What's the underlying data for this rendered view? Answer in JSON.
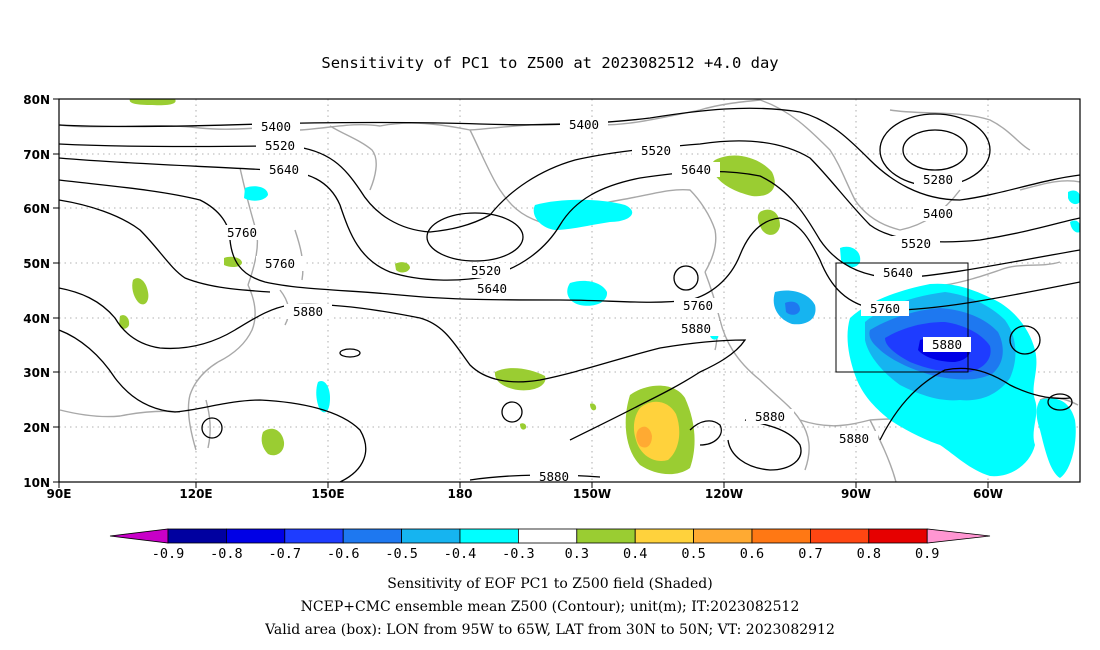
{
  "title": "Sensitivity of PC1 to Z500 at 2023082512 +4.0 day",
  "lat_labels": [
    "80N",
    "70N",
    "60N",
    "50N",
    "40N",
    "30N",
    "20N",
    "10N"
  ],
  "lon_labels": [
    "90E",
    "120E",
    "150E",
    "180",
    "150W",
    "120W",
    "90W",
    "60W"
  ],
  "contour_labels": {
    "c5400a": "5400",
    "c5520a": "5520",
    "c5640a": "5640",
    "c5760a": "5760",
    "c5760b": "5760",
    "c5880a": "5880",
    "c5400b": "5400",
    "c5520b": "5520",
    "c5640b": "5640",
    "c5520c": "5520",
    "c5640c": "5640",
    "c5760c": "5760",
    "c5880b": "5880",
    "c5280": "5280",
    "c5400c": "5400",
    "c5520d": "5520",
    "c5640d": "5640",
    "c5760d": "5760",
    "c5880c": "5880",
    "c5880d": "5880",
    "c5880e": "5880",
    "c5880f": "5880"
  },
  "colorbar": {
    "labels": [
      "-0.9",
      "-0.8",
      "-0.7",
      "-0.6",
      "-0.5",
      "-0.4",
      "-0.3",
      "0.3",
      "0.4",
      "0.5",
      "0.6",
      "0.7",
      "0.8",
      "0.9"
    ],
    "colors": [
      "#0000a0",
      "#0000e6",
      "#1e3cff",
      "#1e78f0",
      "#16b4f0",
      "#00ffff",
      "#ffffff",
      "#9acd32",
      "#ffd23c",
      "#ffaa32",
      "#ff7814",
      "#ff4612",
      "#e60000"
    ],
    "low_end": "#c800c8",
    "high_end": "#ff96d2"
  },
  "caption": {
    "line1": "Sensitivity of EOF PC1 to Z500 field (Shaded)",
    "line2": "NCEP+CMC ensemble mean Z500 (Contour); unit(m); IT:2023082512",
    "line3": "Valid area (box): LON from 95W to 65W, LAT from 30N to 50N; VT: 2023082912"
  }
}
